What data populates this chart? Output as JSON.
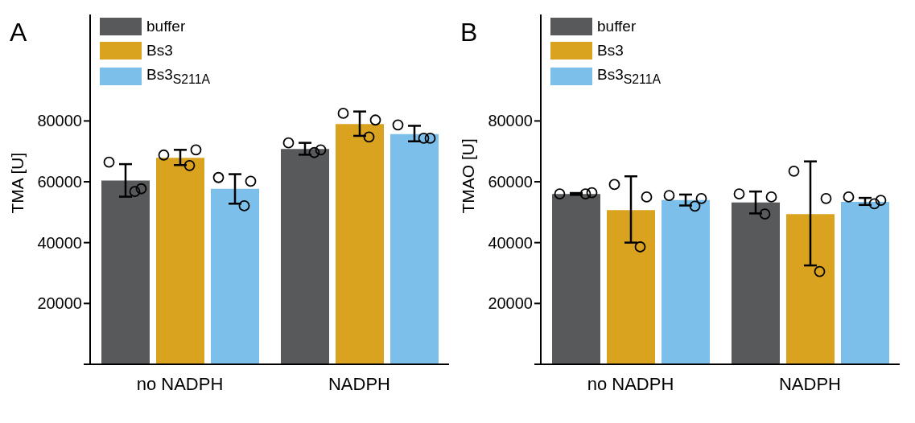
{
  "chart_data": [
    {
      "type": "bar",
      "title": "A",
      "ylabel": "TMA [U]",
      "categories": [
        "no NADPH",
        "NADPH"
      ],
      "ylim": [
        0,
        115000
      ],
      "yticks": [
        {
          "value": 0,
          "label": null
        },
        20000,
        40000,
        60000,
        80000
      ],
      "legend": "top left",
      "series": [
        {
          "name": "buffer",
          "color": "#58595b",
          "values": [
            60400,
            70800
          ],
          "errors": [
            [
              55100,
              65800
            ],
            [
              68900,
              72800
            ]
          ]
        },
        {
          "name": "Bs3",
          "color": "#d9a320",
          "values": [
            67900,
            79000
          ],
          "errors": [
            [
              65500,
              70500
            ],
            [
              75100,
              83100
            ]
          ]
        },
        {
          "name": "Bs3$_{S211A}$",
          "color": "#7dbfeb",
          "values": [
            57700,
            75700
          ],
          "errors": [
            [
              52800,
              62500
            ],
            [
              73300,
              78400
            ]
          ]
        },
        {
          "type": "scatter",
          "color": "#000000",
          "marker": "circle",
          "x": [
            "no NADPH",
            "no NADPH",
            "no NADPH",
            "NADPH",
            "NADPH",
            "NADPH"
          ],
          "values": [
            66450,
            57700,
            56800,
            72800,
            70500,
            69600
          ]
        },
        {
          "type": "scatter",
          "color": "#000000",
          "marker": "circle",
          "x": [
            "no NADPH",
            "no NADPH",
            "no NADPH",
            "NADPH",
            "NADPH",
            "NADPH"
          ],
          "values": [
            68800,
            70500,
            65350,
            82500,
            80300,
            74700
          ]
        },
        {
          "type": "scatter",
          "color": "#000000",
          "marker": "circle",
          "x": [
            "no NADPH",
            "no NADPH",
            "no NADPH",
            "NADPH",
            "NADPH",
            "NADPH"
          ],
          "values": [
            61400,
            60200,
            52100,
            78700,
            74300,
            74300
          ]
        }
      ]
    },
    {
      "type": "bar",
      "title": "B",
      "ylabel": "TMAO [U]",
      "categories": [
        "no NADPH",
        "NADPH"
      ],
      "ylim": [
        0,
        115000
      ],
      "yticks": [
        {
          "value": 0,
          "label": null
        },
        20000,
        40000,
        60000,
        80000
      ],
      "legend": "top left",
      "series": [
        {
          "name": "buffer",
          "color": "#58595b",
          "values": [
            56000,
            53200
          ],
          "errors": [
            [
              55700,
              56300
            ],
            [
              49600,
              56800
            ]
          ]
        },
        {
          "name": "Bs3",
          "color": "#d9a320",
          "values": [
            50700,
            49400
          ],
          "errors": [
            [
              40000,
              61800
            ],
            [
              32500,
              66700
            ]
          ]
        },
        {
          "name": "Bs3$_{S211A}$",
          "color": "#7dbfeb",
          "values": [
            54000,
            53400
          ],
          "errors": [
            [
              52200,
              55800
            ],
            [
              52400,
              54700
            ]
          ]
        },
        {
          "type": "scatter",
          "color": "#000000",
          "marker": "circle",
          "x": [
            "no NADPH",
            "no NADPH",
            "no NADPH",
            "NADPH",
            "NADPH",
            "NADPH"
          ],
          "values": [
            56000,
            56400,
            56000,
            56000,
            55000,
            49400
          ]
        },
        {
          "type": "scatter",
          "color": "#000000",
          "marker": "circle",
          "x": [
            "no NADPH",
            "no NADPH",
            "no NADPH",
            "NADPH",
            "NADPH",
            "NADPH"
          ],
          "values": [
            59100,
            55000,
            38600,
            63500,
            54500,
            30500
          ]
        },
        {
          "type": "scatter",
          "color": "#000000",
          "marker": "circle",
          "x": [
            "no NADPH",
            "no NADPH",
            "no NADPH",
            "NADPH",
            "NADPH",
            "NADPH"
          ],
          "values": [
            55500,
            54500,
            52000,
            55000,
            53900,
            52800
          ]
        }
      ]
    }
  ]
}
